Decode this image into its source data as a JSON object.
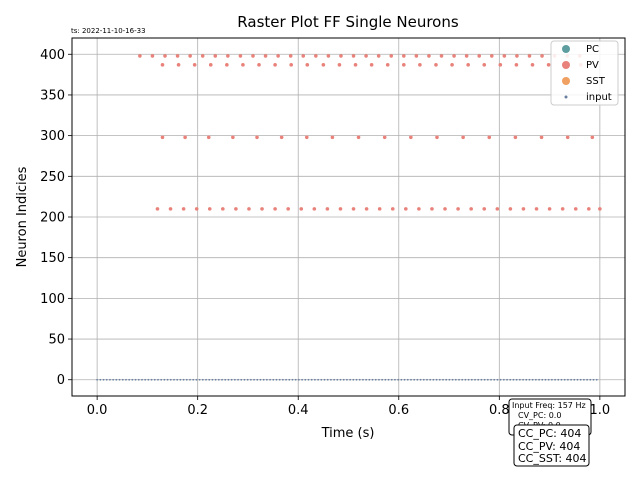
{
  "timestamp": "ts: 2022-11-10-16-33",
  "chart_data": {
    "type": "scatter",
    "title": "Raster Plot FF Single Neurons",
    "xlabel": "Time (s)",
    "ylabel": "Neuron Indicies",
    "xlim": [
      -0.05,
      1.05
    ],
    "ylim": [
      -20,
      420
    ],
    "xticks": [
      0.0,
      0.2,
      0.4,
      0.6,
      0.8,
      1.0
    ],
    "xtick_labels": [
      "0.0",
      "0.2",
      "0.4",
      "0.6",
      "0.8",
      "1.0"
    ],
    "yticks": [
      0,
      50,
      100,
      150,
      200,
      250,
      300,
      350,
      400
    ],
    "ytick_labels": [
      "0",
      "50",
      "100",
      "150",
      "200",
      "250",
      "300",
      "350",
      "400"
    ],
    "grid": true,
    "legend_position": "top-right",
    "series": [
      {
        "name": "PC",
        "color": "#5f9ea0",
        "marker": "circle",
        "points": []
      },
      {
        "name": "PV",
        "color": "#e8827a",
        "marker": "circle",
        "points": [
          [
            0.085,
            398
          ],
          [
            0.11,
            398
          ],
          [
            0.135,
            398
          ],
          [
            0.16,
            398
          ],
          [
            0.185,
            398
          ],
          [
            0.21,
            398
          ],
          [
            0.235,
            398
          ],
          [
            0.26,
            398
          ],
          [
            0.285,
            398
          ],
          [
            0.31,
            398
          ],
          [
            0.335,
            398
          ],
          [
            0.36,
            398
          ],
          [
            0.385,
            398
          ],
          [
            0.41,
            398
          ],
          [
            0.435,
            398
          ],
          [
            0.46,
            398
          ],
          [
            0.485,
            398
          ],
          [
            0.51,
            398
          ],
          [
            0.535,
            398
          ],
          [
            0.56,
            398
          ],
          [
            0.585,
            398
          ],
          [
            0.61,
            398
          ],
          [
            0.635,
            398
          ],
          [
            0.66,
            398
          ],
          [
            0.685,
            398
          ],
          [
            0.71,
            398
          ],
          [
            0.735,
            398
          ],
          [
            0.76,
            398
          ],
          [
            0.785,
            398
          ],
          [
            0.81,
            398
          ],
          [
            0.835,
            398
          ],
          [
            0.86,
            398
          ],
          [
            0.885,
            398
          ],
          [
            0.91,
            398
          ],
          [
            0.935,
            398
          ],
          [
            0.96,
            398
          ],
          [
            0.13,
            387
          ],
          [
            0.162,
            387
          ],
          [
            0.194,
            387
          ],
          [
            0.226,
            387
          ],
          [
            0.258,
            387
          ],
          [
            0.29,
            387
          ],
          [
            0.322,
            387
          ],
          [
            0.354,
            387
          ],
          [
            0.386,
            387
          ],
          [
            0.418,
            387
          ],
          [
            0.45,
            387
          ],
          [
            0.482,
            387
          ],
          [
            0.514,
            387
          ],
          [
            0.546,
            387
          ],
          [
            0.578,
            387
          ],
          [
            0.61,
            387
          ],
          [
            0.642,
            387
          ],
          [
            0.674,
            387
          ],
          [
            0.706,
            387
          ],
          [
            0.738,
            387
          ],
          [
            0.77,
            387
          ],
          [
            0.802,
            387
          ],
          [
            0.834,
            387
          ],
          [
            0.866,
            387
          ],
          [
            0.898,
            387
          ],
          [
            0.93,
            387
          ],
          [
            0.962,
            387
          ],
          [
            0.13,
            298
          ],
          [
            0.175,
            298
          ],
          [
            0.222,
            298
          ],
          [
            0.27,
            298
          ],
          [
            0.318,
            298
          ],
          [
            0.367,
            298
          ],
          [
            0.417,
            298
          ],
          [
            0.468,
            298
          ],
          [
            0.52,
            298
          ],
          [
            0.572,
            298
          ],
          [
            0.624,
            298
          ],
          [
            0.676,
            298
          ],
          [
            0.728,
            298
          ],
          [
            0.78,
            298
          ],
          [
            0.832,
            298
          ],
          [
            0.884,
            298
          ],
          [
            0.936,
            298
          ],
          [
            0.985,
            298
          ],
          [
            0.12,
            210
          ],
          [
            0.146,
            210
          ],
          [
            0.172,
            210
          ],
          [
            0.198,
            210
          ],
          [
            0.224,
            210
          ],
          [
            0.25,
            210
          ],
          [
            0.276,
            210
          ],
          [
            0.302,
            210
          ],
          [
            0.328,
            210
          ],
          [
            0.354,
            210
          ],
          [
            0.38,
            210
          ],
          [
            0.406,
            210
          ],
          [
            0.432,
            210
          ],
          [
            0.458,
            210
          ],
          [
            0.484,
            210
          ],
          [
            0.51,
            210
          ],
          [
            0.536,
            210
          ],
          [
            0.562,
            210
          ],
          [
            0.588,
            210
          ],
          [
            0.614,
            210
          ],
          [
            0.64,
            210
          ],
          [
            0.666,
            210
          ],
          [
            0.692,
            210
          ],
          [
            0.718,
            210
          ],
          [
            0.744,
            210
          ],
          [
            0.77,
            210
          ],
          [
            0.796,
            210
          ],
          [
            0.822,
            210
          ],
          [
            0.848,
            210
          ],
          [
            0.874,
            210
          ],
          [
            0.9,
            210
          ],
          [
            0.926,
            210
          ],
          [
            0.952,
            210
          ],
          [
            0.978,
            210
          ],
          [
            1.0,
            210
          ]
        ]
      },
      {
        "name": "SST",
        "color": "#f0a060",
        "marker": "circle",
        "points": []
      },
      {
        "name": "input",
        "color": "#6a7fa0",
        "marker": "dot",
        "row": 0,
        "x_start": 0.0,
        "x_end": 1.0,
        "spacing": 0.00637
      }
    ]
  },
  "info_small": {
    "line1": "Input Freq: 157 Hz",
    "line2": "CV_PC: 0.0",
    "line3": "CV_PV: 0.0"
  },
  "info_big": {
    "line1": "CC_PC: 404",
    "line2": "CC_PV: 404",
    "line3": "CC_SST: 404"
  }
}
